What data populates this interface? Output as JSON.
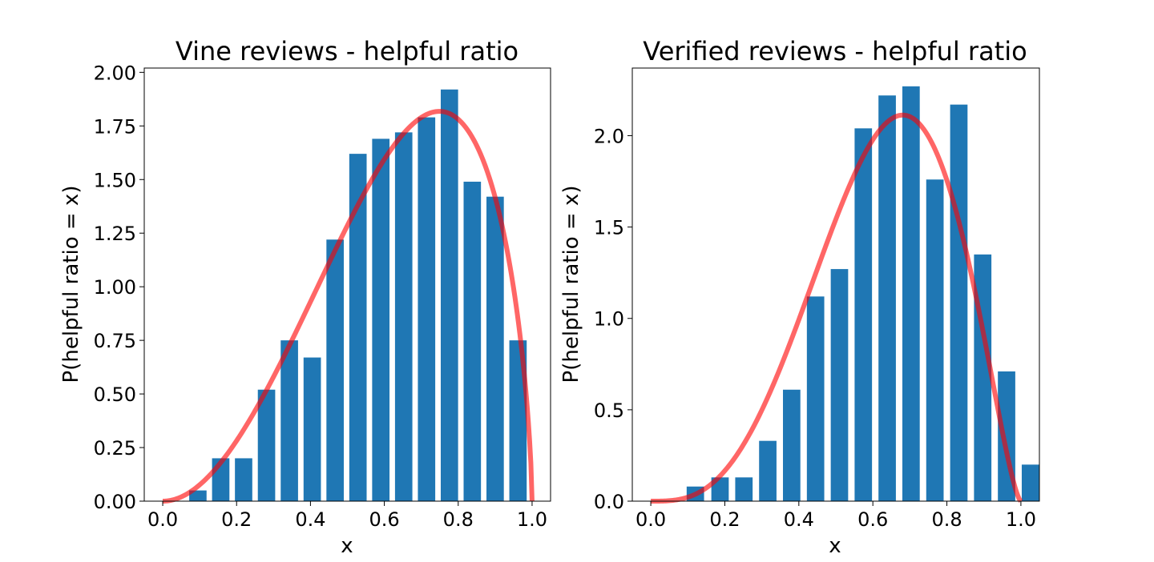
{
  "chart_data": [
    {
      "type": "bar",
      "title": "Vine reviews - helpful ratio",
      "xlabel": "x",
      "ylabel": "P(helpful ratio = x)",
      "xlim": [
        -0.05,
        1.05
      ],
      "ylim": [
        0,
        2.02
      ],
      "xticks": [
        0.0,
        0.2,
        0.4,
        0.6,
        0.8,
        1.0
      ],
      "xtick_labels": [
        "0.0",
        "0.2",
        "0.4",
        "0.6",
        "0.8",
        "1.0"
      ],
      "yticks": [
        0.0,
        0.25,
        0.5,
        0.75,
        1.0,
        1.25,
        1.5,
        1.75,
        2.0
      ],
      "ytick_labels": [
        "0.00",
        "0.25",
        "0.50",
        "0.75",
        "1.00",
        "1.25",
        "1.50",
        "1.75",
        "2.00"
      ],
      "bar_color": "#1f77b4",
      "bar_width": 0.047,
      "bars": {
        "x": [
          0.0952,
          0.1571,
          0.219,
          0.281,
          0.3429,
          0.4048,
          0.4667,
          0.5286,
          0.5905,
          0.6524,
          0.7143,
          0.7762,
          0.8381,
          0.9,
          0.9619
        ],
        "values": [
          0.05,
          0.2,
          0.2,
          0.52,
          0.75,
          0.67,
          1.22,
          1.62,
          1.69,
          1.72,
          1.79,
          1.92,
          1.49,
          1.42,
          0.75
        ]
      },
      "curve_color": "#ff0000",
      "curve": {
        "kind": "beta_pdf",
        "a": 3.0,
        "b": 1.67
      }
    },
    {
      "type": "bar",
      "title": "Verified reviews - helpful ratio",
      "xlabel": "x",
      "ylabel": "P(helpful ratio = x)",
      "xlim": [
        -0.05,
        1.05
      ],
      "ylim": [
        0,
        2.37
      ],
      "xticks": [
        0.0,
        0.2,
        0.4,
        0.6,
        0.8,
        1.0
      ],
      "xtick_labels": [
        "0.0",
        "0.2",
        "0.4",
        "0.6",
        "0.8",
        "1.0"
      ],
      "yticks": [
        0.0,
        0.5,
        1.0,
        1.5,
        2.0
      ],
      "ytick_labels": [
        "0.0",
        "0.5",
        "1.0",
        "1.5",
        "2.0"
      ],
      "bar_color": "#1f77b4",
      "bar_width": 0.047,
      "bars": {
        "x": [
          0.1204,
          0.1871,
          0.2516,
          0.3161,
          0.3806,
          0.4452,
          0.5097,
          0.5742,
          0.6387,
          0.7032,
          0.7677,
          0.8323,
          0.8968,
          0.9613,
          1.0258
        ],
        "values": [
          0.08,
          0.13,
          0.13,
          0.33,
          0.61,
          1.12,
          1.27,
          2.04,
          2.22,
          2.27,
          1.76,
          2.17,
          1.35,
          0.71,
          0.2
        ]
      },
      "curve_color": "#ff0000",
      "curve": {
        "kind": "beta_pdf",
        "a": 4.2,
        "b": 2.5
      }
    }
  ]
}
